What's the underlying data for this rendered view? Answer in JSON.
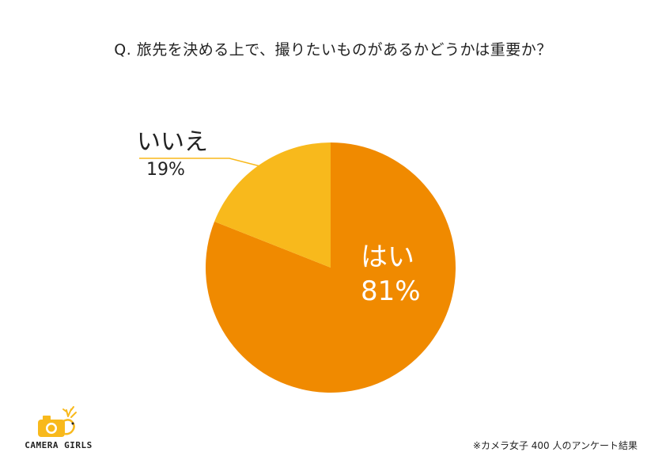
{
  "title": "Q. 旅先を決める上で、撮りたいものがあるかどうかは重要か？",
  "chart_data": {
    "type": "pie",
    "slices": [
      {
        "label": "はい",
        "value": 81,
        "value_label": "81%",
        "color": "#F08A00"
      },
      {
        "label": "いいえ",
        "value": 19,
        "value_label": "19%",
        "color": "#F8B91C"
      }
    ],
    "title": "Q. 旅先を決める上で、撮りたいものがあるかどうかは重要か？",
    "label_line_color": "#F8B91C"
  },
  "logo": {
    "text": "CAMERA GIRLS",
    "accent": "#F8B91C"
  },
  "footnote": "※カメラ女子 400 人のアンケート結果"
}
